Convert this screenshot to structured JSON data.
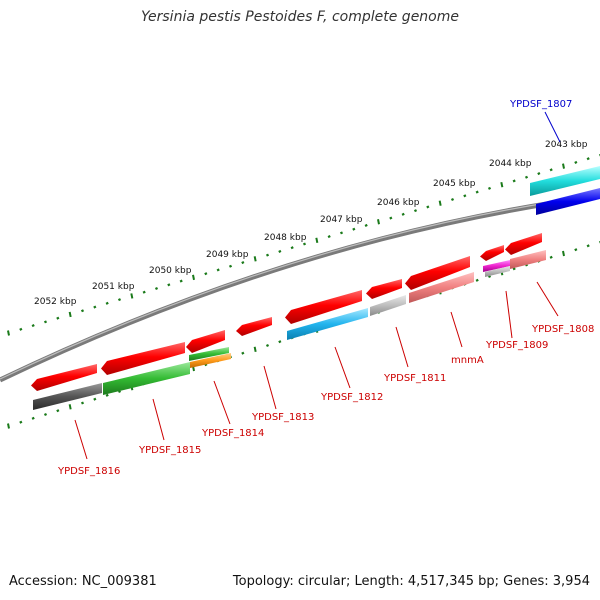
{
  "title": "Yersinia pestis Pestoides F, complete genome",
  "footer": {
    "accession": "Accession: NC_009381",
    "summary": "Topology: circular; Length: 4,517,345 bp; Genes: 3,954"
  },
  "colors": {
    "backbone": "#7a7a7a",
    "tick": "#1a7a1a",
    "label_red": "#cc0000",
    "label_blue": "#0000cc"
  },
  "kbp_labels": [
    "2043 kbp",
    "2044 kbp",
    "2045 kbp",
    "2046 kbp",
    "2047 kbp",
    "2048 kbp",
    "2049 kbp",
    "2050 kbp",
    "2051 kbp",
    "2052 kbp"
  ],
  "gene_labels": [
    {
      "text": "YPDSF_1807",
      "color": "#0000cc"
    },
    {
      "text": "YPDSF_1808",
      "color": "#cc0000"
    },
    {
      "text": "YPDSF_1809",
      "color": "#cc0000"
    },
    {
      "text": "mnmA",
      "color": "#cc0000"
    },
    {
      "text": "YPDSF_1811",
      "color": "#cc0000"
    },
    {
      "text": "YPDSF_1812",
      "color": "#cc0000"
    },
    {
      "text": "YPDSF_1813",
      "color": "#cc0000"
    },
    {
      "text": "YPDSF_1814",
      "color": "#cc0000"
    },
    {
      "text": "YPDSF_1815",
      "color": "#cc0000"
    },
    {
      "text": "YPDSF_1816",
      "color": "#cc0000"
    }
  ]
}
